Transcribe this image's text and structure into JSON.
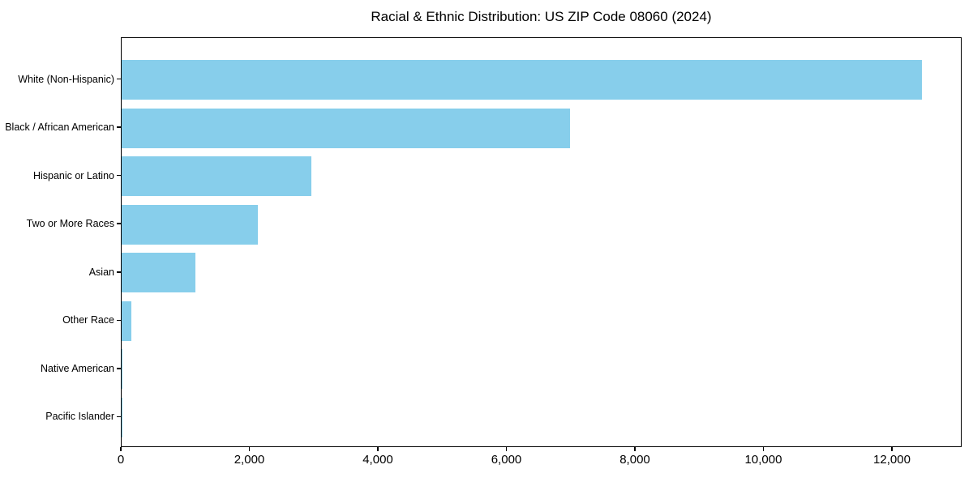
{
  "page": {
    "background_color": "#ffffff"
  },
  "chart_data": {
    "type": "bar",
    "orientation": "horizontal",
    "title": "Racial & Ethnic Distribution: US ZIP Code 08060 (2024)",
    "categories": [
      "White (Non-Hispanic)",
      "Black / African American",
      "Hispanic or Latino",
      "Two or More Races",
      "Asian",
      "Other Race",
      "Native American",
      "Pacific Islander"
    ],
    "values": [
      12450,
      6980,
      2950,
      2120,
      1150,
      150,
      15,
      5
    ],
    "bar_color": "#87CEEB",
    "axis_color": "#000000",
    "text_color": "#000000",
    "xlabel": "",
    "ylabel": "",
    "xlim": [
      0,
      13085
    ],
    "xticks": {
      "values": [
        0,
        2000,
        4000,
        6000,
        8000,
        10000,
        12000
      ],
      "labels": [
        "0",
        "2,000",
        "4,000",
        "6,000",
        "8,000",
        "10,000",
        "12,000"
      ]
    },
    "grid": false,
    "legend": null
  }
}
